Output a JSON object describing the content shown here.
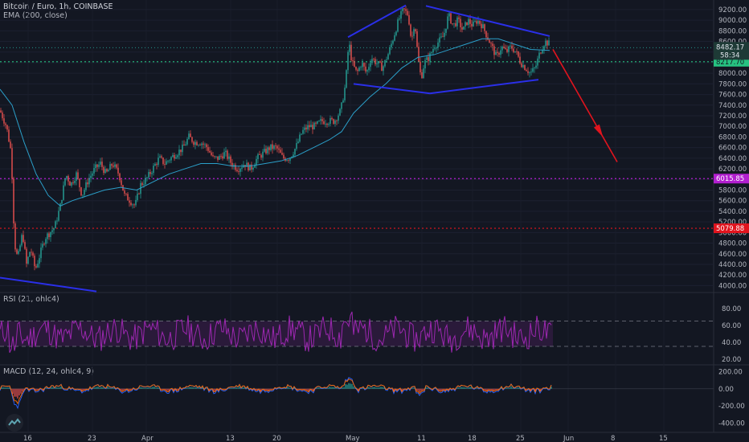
{
  "header": {
    "title": "Bitcoin / Euro, 1h, COINBASE",
    "ema_label": "EMA (200, close)"
  },
  "rsi_header": {
    "label": "RSI (21, ohlc4)"
  },
  "macd_header": {
    "label": "MACD (12, 24, ohlc4, 9)"
  },
  "colors": {
    "background": "#131722",
    "up": "#26a69a",
    "down": "#ef5350",
    "ema": "#2b9fc9",
    "pattern": "#2a2fe8",
    "arrow": "#e0141e",
    "purple_line": "#b21fcf",
    "red_line": "#e0141e",
    "green_line": "#26c281",
    "rsi": "#9c27b0"
  },
  "chart_data": [
    {
      "type": "candlestick",
      "title": "Bitcoin / Euro, 1h, COINBASE",
      "ylim": [
        3900,
        9350
      ],
      "y_ticks": [
        "9200.00",
        "9000.00",
        "8800.00",
        "8600.00",
        "8400.00",
        "8200.00",
        "8000.00",
        "7800.00",
        "7600.00",
        "7400.00",
        "7200.00",
        "7000.00",
        "6800.00",
        "6600.00",
        "6400.00",
        "6200.00",
        "6000.00",
        "5800.00",
        "5600.00",
        "5400.00",
        "5200.00",
        "5000.00",
        "4800.00",
        "4600.00",
        "4400.00",
        "4200.00",
        "4000.00"
      ],
      "x_ticks": [
        "16",
        "23",
        "Apr",
        "13",
        "20",
        "May",
        "11",
        "18",
        "25",
        "Jun",
        "8",
        "15"
      ],
      "price_path": [
        {
          "x": 0,
          "y": 7300
        },
        {
          "x": 8,
          "y": 7000
        },
        {
          "x": 14,
          "y": 6500
        },
        {
          "x": 18,
          "y": 4800
        },
        {
          "x": 22,
          "y": 4500
        },
        {
          "x": 28,
          "y": 5000
        },
        {
          "x": 33,
          "y": 4400
        },
        {
          "x": 38,
          "y": 4700
        },
        {
          "x": 44,
          "y": 4300
        },
        {
          "x": 50,
          "y": 4600
        },
        {
          "x": 56,
          "y": 4900
        },
        {
          "x": 62,
          "y": 5000
        },
        {
          "x": 68,
          "y": 5100
        },
        {
          "x": 75,
          "y": 5500
        },
        {
          "x": 82,
          "y": 6100
        },
        {
          "x": 88,
          "y": 5900
        },
        {
          "x": 95,
          "y": 6100
        },
        {
          "x": 102,
          "y": 5700
        },
        {
          "x": 110,
          "y": 6000
        },
        {
          "x": 118,
          "y": 6200
        },
        {
          "x": 125,
          "y": 6300
        },
        {
          "x": 132,
          "y": 6100
        },
        {
          "x": 140,
          "y": 6300
        },
        {
          "x": 148,
          "y": 6100
        },
        {
          "x": 155,
          "y": 5700
        },
        {
          "x": 162,
          "y": 5600
        },
        {
          "x": 168,
          "y": 5500
        },
        {
          "x": 175,
          "y": 5900
        },
        {
          "x": 182,
          "y": 6000
        },
        {
          "x": 190,
          "y": 6200
        },
        {
          "x": 198,
          "y": 6400
        },
        {
          "x": 205,
          "y": 6300
        },
        {
          "x": 212,
          "y": 6400
        },
        {
          "x": 220,
          "y": 6500
        },
        {
          "x": 228,
          "y": 6600
        },
        {
          "x": 235,
          "y": 6800
        },
        {
          "x": 242,
          "y": 6700
        },
        {
          "x": 250,
          "y": 6700
        },
        {
          "x": 258,
          "y": 6600
        },
        {
          "x": 265,
          "y": 6400
        },
        {
          "x": 272,
          "y": 6400
        },
        {
          "x": 280,
          "y": 6500
        },
        {
          "x": 288,
          "y": 6300
        },
        {
          "x": 296,
          "y": 6200
        },
        {
          "x": 304,
          "y": 6300
        },
        {
          "x": 312,
          "y": 6200
        },
        {
          "x": 320,
          "y": 6400
        },
        {
          "x": 328,
          "y": 6500
        },
        {
          "x": 336,
          "y": 6600
        },
        {
          "x": 344,
          "y": 6600
        },
        {
          "x": 352,
          "y": 6400
        },
        {
          "x": 360,
          "y": 6400
        },
        {
          "x": 368,
          "y": 6600
        },
        {
          "x": 376,
          "y": 6900
        },
        {
          "x": 384,
          "y": 7000
        },
        {
          "x": 392,
          "y": 7000
        },
        {
          "x": 400,
          "y": 7100
        },
        {
          "x": 408,
          "y": 7100
        },
        {
          "x": 416,
          "y": 7100
        },
        {
          "x": 424,
          "y": 7300
        },
        {
          "x": 430,
          "y": 7800
        },
        {
          "x": 434,
          "y": 8600
        },
        {
          "x": 438,
          "y": 8200
        },
        {
          "x": 444,
          "y": 8000
        },
        {
          "x": 450,
          "y": 8200
        },
        {
          "x": 456,
          "y": 8000
        },
        {
          "x": 462,
          "y": 8300
        },
        {
          "x": 468,
          "y": 8200
        },
        {
          "x": 476,
          "y": 8100
        },
        {
          "x": 484,
          "y": 8400
        },
        {
          "x": 490,
          "y": 8700
        },
        {
          "x": 496,
          "y": 9000
        },
        {
          "x": 502,
          "y": 9200
        },
        {
          "x": 508,
          "y": 9100
        },
        {
          "x": 512,
          "y": 8600
        },
        {
          "x": 516,
          "y": 9000
        },
        {
          "x": 520,
          "y": 8300
        },
        {
          "x": 524,
          "y": 7900
        },
        {
          "x": 528,
          "y": 8200
        },
        {
          "x": 534,
          "y": 8300
        },
        {
          "x": 540,
          "y": 8500
        },
        {
          "x": 546,
          "y": 8600
        },
        {
          "x": 552,
          "y": 8700
        },
        {
          "x": 558,
          "y": 9100
        },
        {
          "x": 564,
          "y": 8900
        },
        {
          "x": 570,
          "y": 9000
        },
        {
          "x": 576,
          "y": 8800
        },
        {
          "x": 582,
          "y": 9000
        },
        {
          "x": 588,
          "y": 8900
        },
        {
          "x": 594,
          "y": 9000
        },
        {
          "x": 600,
          "y": 8900
        },
        {
          "x": 606,
          "y": 8700
        },
        {
          "x": 612,
          "y": 8500
        },
        {
          "x": 618,
          "y": 8300
        },
        {
          "x": 624,
          "y": 8500
        },
        {
          "x": 630,
          "y": 8400
        },
        {
          "x": 636,
          "y": 8500
        },
        {
          "x": 642,
          "y": 8400
        },
        {
          "x": 648,
          "y": 8200
        },
        {
          "x": 654,
          "y": 8100
        },
        {
          "x": 660,
          "y": 8000
        },
        {
          "x": 666,
          "y": 8100
        },
        {
          "x": 672,
          "y": 8400
        },
        {
          "x": 678,
          "y": 8600
        },
        {
          "x": 684,
          "y": 8550
        }
      ],
      "ema_path": [
        {
          "x": 0,
          "y": 7700
        },
        {
          "x": 15,
          "y": 7400
        },
        {
          "x": 30,
          "y": 6700
        },
        {
          "x": 45,
          "y": 6100
        },
        {
          "x": 60,
          "y": 5700
        },
        {
          "x": 75,
          "y": 5500
        },
        {
          "x": 90,
          "y": 5600
        },
        {
          "x": 110,
          "y": 5700
        },
        {
          "x": 130,
          "y": 5800
        },
        {
          "x": 150,
          "y": 5850
        },
        {
          "x": 170,
          "y": 5800
        },
        {
          "x": 190,
          "y": 5950
        },
        {
          "x": 210,
          "y": 6100
        },
        {
          "x": 230,
          "y": 6200
        },
        {
          "x": 250,
          "y": 6300
        },
        {
          "x": 270,
          "y": 6300
        },
        {
          "x": 290,
          "y": 6250
        },
        {
          "x": 310,
          "y": 6250
        },
        {
          "x": 330,
          "y": 6300
        },
        {
          "x": 350,
          "y": 6350
        },
        {
          "x": 370,
          "y": 6450
        },
        {
          "x": 390,
          "y": 6600
        },
        {
          "x": 410,
          "y": 6750
        },
        {
          "x": 425,
          "y": 6900
        },
        {
          "x": 440,
          "y": 7250
        },
        {
          "x": 460,
          "y": 7550
        },
        {
          "x": 480,
          "y": 7800
        },
        {
          "x": 500,
          "y": 8100
        },
        {
          "x": 520,
          "y": 8300
        },
        {
          "x": 540,
          "y": 8350
        },
        {
          "x": 560,
          "y": 8450
        },
        {
          "x": 580,
          "y": 8550
        },
        {
          "x": 600,
          "y": 8650
        },
        {
          "x": 620,
          "y": 8650
        },
        {
          "x": 640,
          "y": 8550
        },
        {
          "x": 660,
          "y": 8450
        },
        {
          "x": 684,
          "y": 8430
        }
      ],
      "horizontal_lines": [
        {
          "y": 6015.85,
          "label": "6015.85",
          "color": "#b21fcf"
        },
        {
          "y": 5079.88,
          "label": "5079.88",
          "color": "#e0141e"
        },
        {
          "y": 8217.7,
          "label": "8217.70",
          "color": "#26c281"
        },
        {
          "y": 8482.17,
          "label": "8482.17",
          "color": "#26a69a"
        }
      ],
      "price_labels": {
        "current": "8482.17",
        "countdown": "58:34",
        "level": "8217.70"
      },
      "pattern_lines": [
        {
          "from": {
            "x": 433,
            "y": 8680
          },
          "to": {
            "x": 505,
            "y": 9280
          }
        },
        {
          "from": {
            "x": 530,
            "y": 9270
          },
          "to": {
            "x": 684,
            "y": 8700
          }
        },
        {
          "from": {
            "x": 440,
            "y": 7800
          },
          "to": {
            "x": 535,
            "y": 7620
          }
        },
        {
          "from": {
            "x": 535,
            "y": 7620
          },
          "to": {
            "x": 670,
            "y": 7880
          }
        },
        {
          "from": {
            "x": 0,
            "y": 4150
          },
          "to": {
            "x": 120,
            "y": 3890
          }
        }
      ],
      "arrow": {
        "from": {
          "x": 688,
          "y": 8450
        },
        "to": {
          "x": 768,
          "y": 6330
        }
      }
    },
    {
      "type": "line",
      "title": "RSI (21, ohlc4)",
      "ylim": [
        15,
        95
      ],
      "y_ticks": [
        "80.00",
        "60.00",
        "40.00",
        "20.00"
      ],
      "band": [
        35,
        65
      ],
      "values_note": "oscillates mostly between 30 and 70"
    },
    {
      "type": "line",
      "title": "MACD (12, 24, ohlc4, 9)",
      "ylim": [
        -480,
        260
      ],
      "y_ticks": [
        "200.00",
        "0.00",
        "-200.00",
        "-400.00"
      ]
    }
  ]
}
